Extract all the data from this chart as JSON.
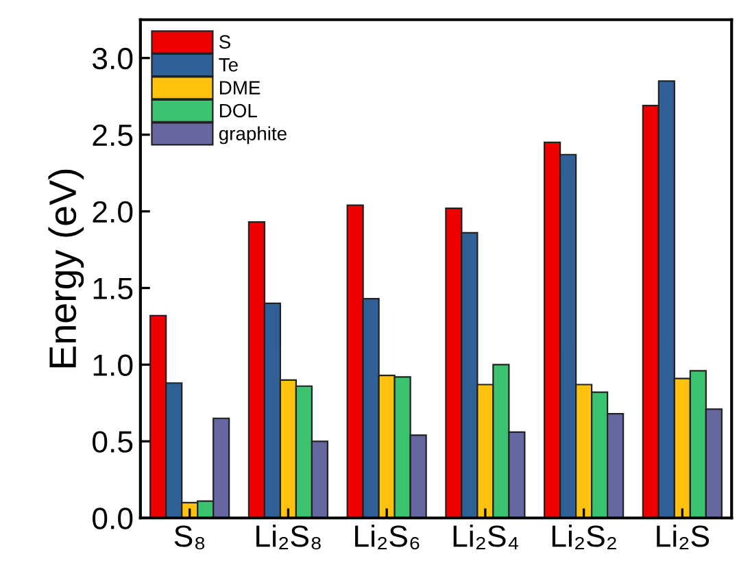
{
  "chart_data": {
    "type": "bar",
    "ylabel": "Energy (eV)",
    "categories": [
      "S₈",
      "Li₂S₈",
      "Li₂S₆",
      "Li₂S₄",
      "Li₂S₂",
      "Li₂S"
    ],
    "series": [
      {
        "name": "S",
        "color": "#ee0000",
        "values": [
          1.32,
          1.93,
          2.04,
          2.02,
          2.45,
          2.69
        ]
      },
      {
        "name": "Te",
        "color": "#2f6096",
        "values": [
          0.88,
          1.4,
          1.43,
          1.86,
          2.37,
          2.85
        ]
      },
      {
        "name": "DME",
        "color": "#ffc20e",
        "values": [
          0.1,
          0.9,
          0.93,
          0.87,
          0.87,
          0.91
        ]
      },
      {
        "name": "DOL",
        "color": "#3cc36f",
        "values": [
          0.11,
          0.86,
          0.92,
          1.0,
          0.82,
          0.96
        ]
      },
      {
        "name": "graphite",
        "color": "#6667a0",
        "values": [
          0.65,
          0.5,
          0.54,
          0.56,
          0.68,
          0.71
        ]
      }
    ],
    "ylim": [
      0,
      3.25
    ],
    "yticks": [
      {
        "value": 0,
        "label": "0.0"
      },
      0.5,
      {
        "value": 1,
        "label": "1.0"
      },
      1.5,
      {
        "value": 2,
        "label": "2.0"
      },
      2.5,
      {
        "value": 3,
        "label": "3.0"
      }
    ],
    "grid": false,
    "legend": "top left"
  }
}
